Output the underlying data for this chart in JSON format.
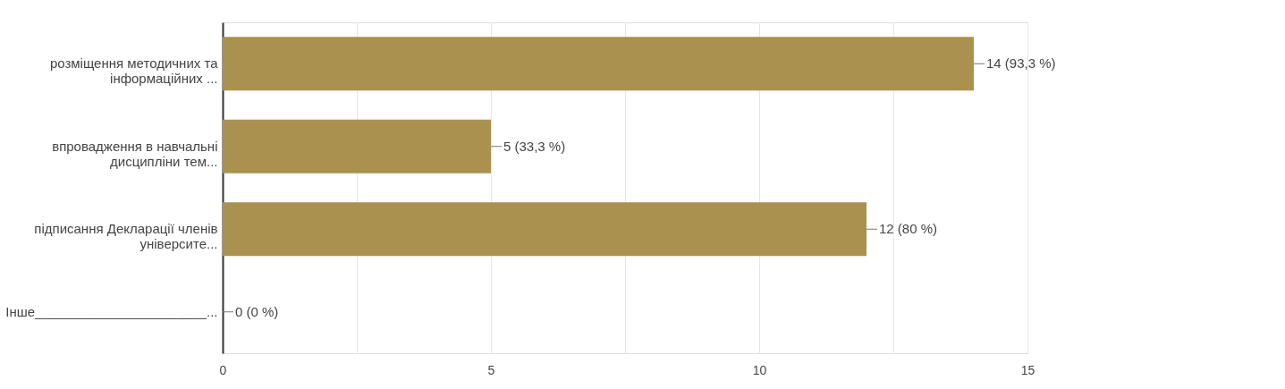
{
  "chart_data": {
    "type": "bar",
    "orientation": "horizontal",
    "categories": [
      "розміщення методичних та\nінформаційних ...",
      "впровадження в навчальні\nдисципліни тем...",
      "підписання Декларації членів\nуніверсите...",
      "Інше_______________________..."
    ],
    "values": [
      14,
      5,
      12,
      0
    ],
    "value_labels": [
      "14 (93,3 %)",
      "5 (33,3 %)",
      "12 (80 %)",
      "0 (0 %)"
    ],
    "color": "#ab9150",
    "xlim": [
      0,
      15
    ],
    "xticks": [
      0,
      {
        "value": 2.5,
        "label": null
      },
      5,
      {
        "value": 7.5,
        "label": null
      },
      10,
      {
        "value": 12.5,
        "label": null
      },
      15
    ],
    "grid": "x"
  }
}
